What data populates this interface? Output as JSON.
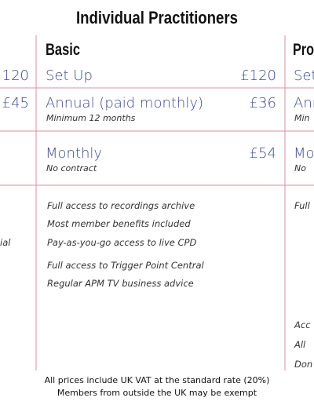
{
  "header": {
    "title": "Individual Practitioners"
  },
  "left_column": {
    "set_up_price": "120",
    "annual_price": "£45",
    "feature": "ial"
  },
  "basic": {
    "name": "Basic",
    "rows": [
      {
        "label": "Set Up",
        "price": "£120"
      },
      {
        "label": "Annual (paid monthly)",
        "price": "£36",
        "note": "Minimum 12 months"
      },
      {
        "label": "Monthly",
        "price": "£54",
        "note": "No contract"
      }
    ],
    "features": [
      "Full access to recordings archive",
      "Most member benefits included",
      "Pay-as-you-go access to live CPD",
      "Full access to Trigger Point Central",
      "Regular APM TV business advice"
    ]
  },
  "pro": {
    "name": "Pro",
    "rows": [
      "Set",
      "Ann",
      "Min",
      "Mo",
      "No"
    ],
    "features": [
      "Full",
      "Acc",
      "All",
      "Don"
    ]
  },
  "footer": {
    "lines": [
      "All prices include UK VAT at the standard rate (20%)",
      "Members from outside the UK may be exempt"
    ]
  }
}
